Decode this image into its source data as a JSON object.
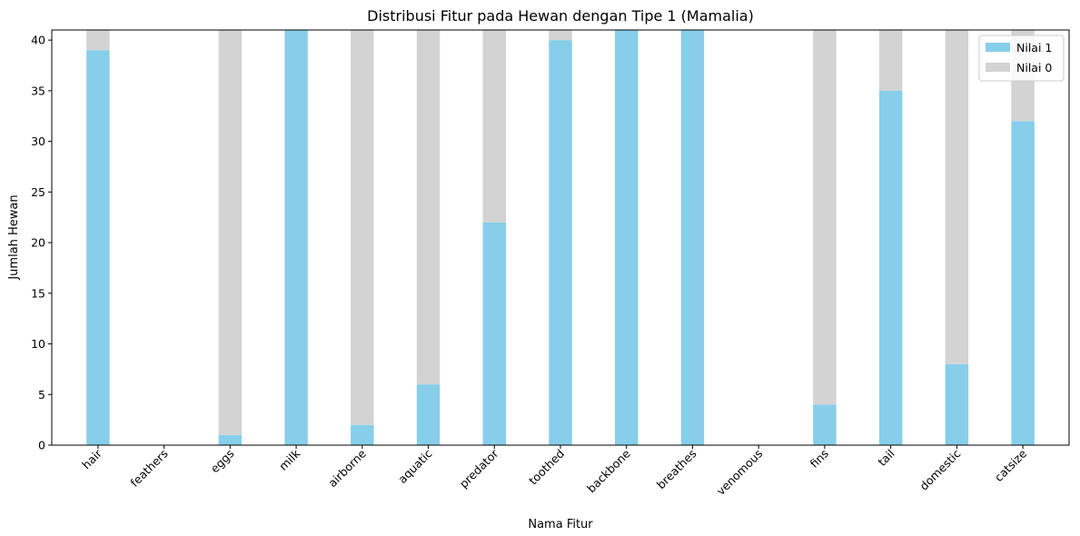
{
  "chart_data": {
    "type": "bar",
    "stacked": true,
    "title": "Distribusi Fitur pada Hewan dengan Tipe 1 (Mamalia)",
    "xlabel": "Nama Fitur",
    "ylabel": "Jumlah Hewan",
    "categories": [
      "hair",
      "feathers",
      "eggs",
      "milk",
      "airborne",
      "aquatic",
      "predator",
      "toothed",
      "backbone",
      "breathes",
      "venomous",
      "fins",
      "tail",
      "domestic",
      "catsize"
    ],
    "series": [
      {
        "name": "Nilai 1",
        "color": "#87ceeb",
        "values": [
          39,
          0,
          1,
          41,
          2,
          6,
          22,
          40,
          41,
          41,
          0,
          4,
          35,
          8,
          32
        ]
      },
      {
        "name": "Nilai 0",
        "color": "#d3d3d3",
        "values": [
          2,
          0,
          40,
          0,
          39,
          35,
          19,
          1,
          0,
          0,
          0,
          37,
          6,
          33,
          9
        ]
      }
    ],
    "ylim": [
      0,
      41
    ],
    "yticks": [
      0,
      5,
      10,
      15,
      20,
      25,
      30,
      35,
      40
    ],
    "legend_position": "top-right",
    "grid": false
  }
}
